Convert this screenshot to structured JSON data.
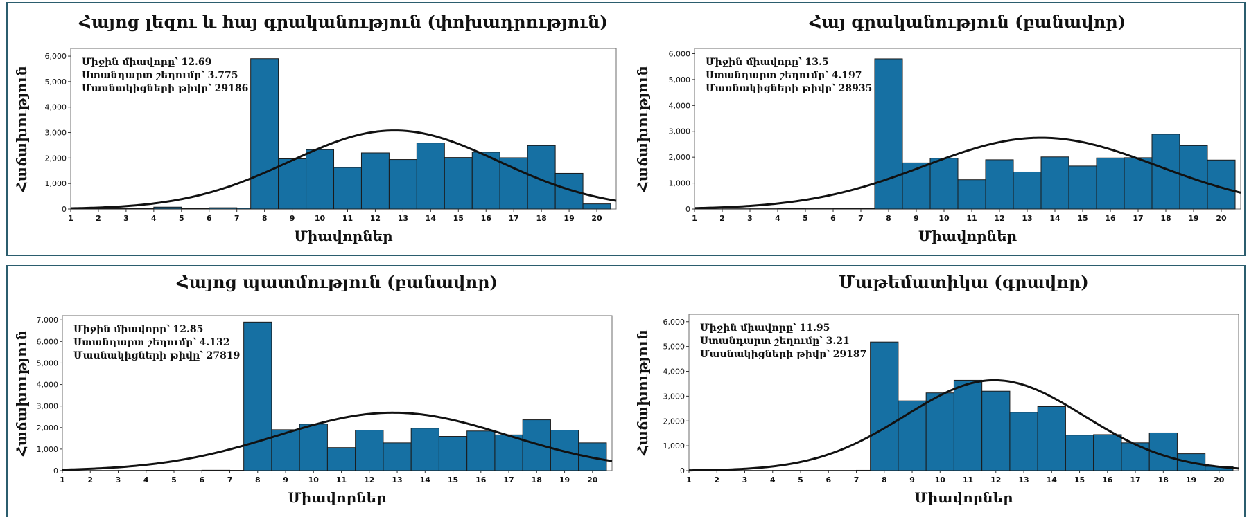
{
  "colors": {
    "bar": "#1670a3",
    "bar_stroke": "#1a1a1a",
    "curve": "#111111",
    "frame": "#2b5d6e"
  },
  "chart_data": [
    {
      "type": "bar",
      "title": "Հայոց լեզու և հայ գրականություն (փոխադրություն)",
      "xlabel": "Միավորներ",
      "ylabel": "Հաճախություն",
      "x_ticks": [
        "1",
        "2",
        "3",
        "4",
        "5",
        "6",
        "7",
        "8",
        "9",
        "10",
        "11",
        "12",
        "13",
        "14",
        "15",
        "16",
        "17",
        "18",
        "19",
        "20"
      ],
      "y_ticks": [
        "0",
        "1,000",
        "2,000",
        "3,000",
        "4,000",
        "5,000",
        "6,000"
      ],
      "ylim": [
        0,
        6300
      ],
      "xlim": [
        1,
        20.7
      ],
      "bin_edges": [
        1,
        2,
        3,
        4,
        5,
        6,
        7,
        7.5,
        8.5,
        9.5,
        10.5,
        11.5,
        12.5,
        13.5,
        14.5,
        15.5,
        16.5,
        17.5,
        18.5,
        19.5,
        20.5
      ],
      "values": [
        8,
        15,
        20,
        75,
        20,
        50,
        40,
        5900,
        1970,
        2330,
        1630,
        2200,
        1940,
        2590,
        2020,
        2230,
        2010,
        2490,
        1400,
        200
      ],
      "normal_curve": {
        "mean": 12.69,
        "sd": 3.775,
        "peak": 3080
      },
      "stats": [
        "Միջին միավորը՝ 12.69",
        "Ստանդարտ շեղումը՝ 3.775",
        "Մասնակիցների թիվը՝ 29186"
      ]
    },
    {
      "type": "bar",
      "title": "Հայ գրականություն (բանավոր)",
      "xlabel": "Միավորներ",
      "ylabel": "Հաճախություն",
      "x_ticks": [
        "1",
        "2",
        "3",
        "4",
        "5",
        "6",
        "7",
        "8",
        "9",
        "10",
        "11",
        "12",
        "13",
        "14",
        "15",
        "16",
        "17",
        "18",
        "19",
        "20"
      ],
      "y_ticks": [
        "0",
        "1,000",
        "2,000",
        "3,000",
        "4,000",
        "5,000",
        "6,000"
      ],
      "ylim": [
        0,
        6200
      ],
      "xlim": [
        1,
        20.7
      ],
      "bin_edges": [
        1,
        2,
        3,
        4,
        5,
        6,
        7,
        7.5,
        8.5,
        9.5,
        10.5,
        11.5,
        12.5,
        13.5,
        14.5,
        15.5,
        16.5,
        17.5,
        18.5,
        19.5,
        20.5
      ],
      "values": [
        5,
        8,
        10,
        15,
        12,
        15,
        20,
        5800,
        1780,
        1960,
        1130,
        1900,
        1430,
        2010,
        1660,
        1970,
        1980,
        2890,
        2450,
        1890
      ],
      "normal_curve": {
        "mean": 13.5,
        "sd": 4.197,
        "peak": 2750
      },
      "stats": [
        "Միջին միավորը՝ 13.5",
        "Ստանդարտ շեղումը՝ 4.197",
        "Մասնակիցների թիվը՝ 28935"
      ]
    },
    {
      "type": "bar",
      "title": "Հայոց պատմություն (բանավոր)",
      "xlabel": "Միավորներ",
      "ylabel": "Հաճախություն",
      "x_ticks": [
        "1",
        "2",
        "3",
        "4",
        "5",
        "6",
        "7",
        "8",
        "9",
        "10",
        "11",
        "12",
        "13",
        "14",
        "15",
        "16",
        "17",
        "18",
        "19",
        "20"
      ],
      "y_ticks": [
        "0",
        "1,000",
        "2,000",
        "3,000",
        "4,000",
        "5,000",
        "6,000",
        "7,000"
      ],
      "ylim": [
        0,
        7200
      ],
      "xlim": [
        1,
        20.7
      ],
      "bin_edges": [
        1,
        2,
        3,
        4,
        5,
        6,
        7,
        7.5,
        8.5,
        9.5,
        10.5,
        11.5,
        12.5,
        13.5,
        14.5,
        15.5,
        16.5,
        17.5,
        18.5,
        19.5,
        20.5
      ],
      "values": [
        5,
        8,
        10,
        15,
        10,
        20,
        15,
        6900,
        1900,
        2160,
        1070,
        1880,
        1290,
        1970,
        1590,
        1840,
        1660,
        2360,
        1880,
        1290
      ],
      "normal_curve": {
        "mean": 12.85,
        "sd": 4.132,
        "peak": 2690
      },
      "stats": [
        "Միջին միավորը՝ 12.85",
        "Ստանդարտ շեղումը՝ 4.132",
        "Մասնակիցների թիվը՝ 27819"
      ]
    },
    {
      "type": "bar",
      "title": "Մաթեմատիկա (գրավոր)",
      "xlabel": "Միավորներ",
      "ylabel": "Հաճախություն",
      "x_ticks": [
        "1",
        "2",
        "3",
        "4",
        "5",
        "6",
        "7",
        "8",
        "9",
        "10",
        "11",
        "12",
        "13",
        "14",
        "15",
        "16",
        "17",
        "18",
        "19",
        "20"
      ],
      "y_ticks": [
        "0",
        "1,000",
        "2,000",
        "3,000",
        "4,000",
        "5,000",
        "6,000"
      ],
      "ylim": [
        0,
        6300
      ],
      "xlim": [
        1,
        20.7
      ],
      "bin_edges": [
        1,
        2,
        3,
        4,
        5,
        6,
        7,
        7.5,
        8.5,
        9.5,
        10.5,
        11.5,
        12.5,
        13.5,
        14.5,
        15.5,
        16.5,
        17.5,
        18.5,
        19.5,
        20.5
      ],
      "values": [
        5,
        5,
        8,
        10,
        10,
        10,
        15,
        5180,
        2810,
        3130,
        3640,
        3200,
        2350,
        2580,
        1430,
        1450,
        1120,
        1520,
        680,
        170
      ],
      "normal_curve": {
        "mean": 11.95,
        "sd": 3.21,
        "peak": 3640
      },
      "stats": [
        "Միջին միավորը՝ 11.95",
        "Ստանդարտ շեղումը՝ 3.21",
        "Մասնակիցների թիվը՝ 29187"
      ]
    }
  ]
}
